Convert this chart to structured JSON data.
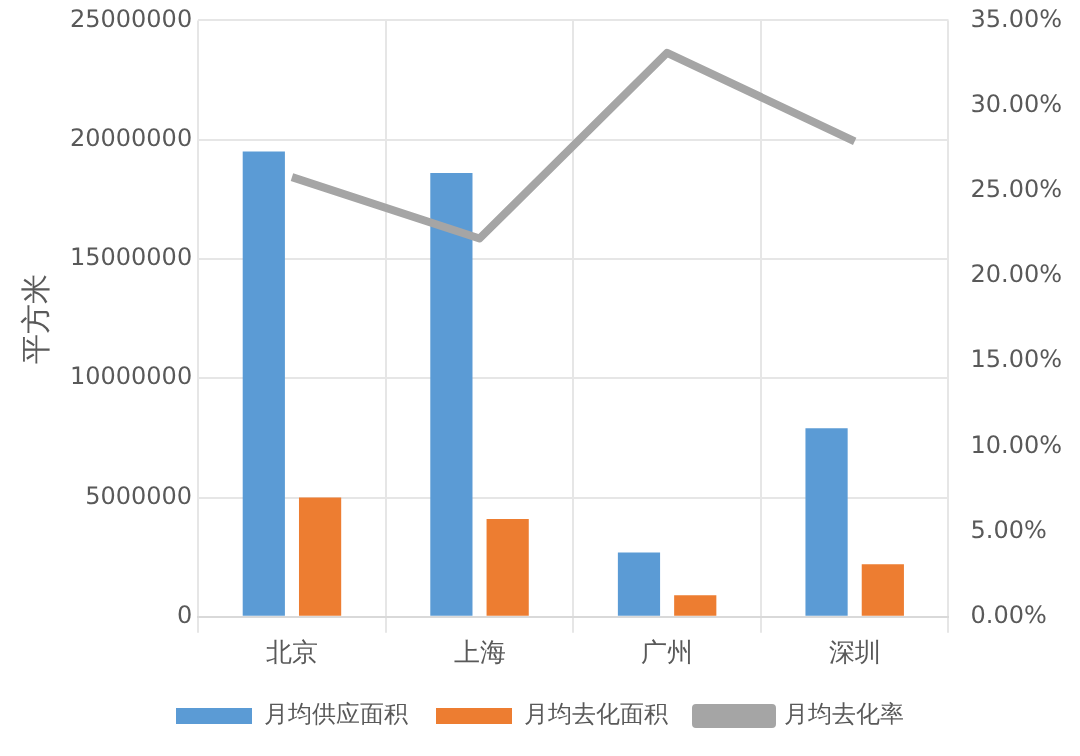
{
  "chart_data": {
    "type": "bar",
    "ylabel": "平方米",
    "categories": [
      "北京",
      "上海",
      "广州",
      "深圳"
    ],
    "series": [
      {
        "name": "月均供应面积",
        "color": "#5b9bd5",
        "values": [
          19500000,
          18600000,
          2700000,
          7900000
        ]
      },
      {
        "name": "月均去化面积",
        "color": "#ed7d31",
        "values": [
          5000000,
          4100000,
          900000,
          2200000
        ]
      },
      {
        "name": "月均去化率",
        "type": "line",
        "axis": "y2",
        "color": "#a5a5a5",
        "values": [
          25.8,
          22.2,
          33.1,
          27.9
        ]
      }
    ],
    "ylim": [
      0,
      25000000
    ],
    "yticks": [
      0,
      5000000,
      10000000,
      15000000,
      20000000,
      25000000
    ],
    "y2lim": [
      0,
      35
    ],
    "y2ticks": [
      {
        "value": 0,
        "label": "0.00%"
      },
      {
        "value": 5,
        "label": "5.00%"
      },
      {
        "value": 10,
        "label": "10.00%"
      },
      {
        "value": 15,
        "label": "15.00%"
      },
      {
        "value": 20,
        "label": "20.00%"
      },
      {
        "value": 25,
        "label": "25.00%"
      },
      {
        "value": 30,
        "label": "30.00%"
      },
      {
        "value": 35,
        "label": "35.00%"
      }
    ],
    "grid": true,
    "legend": "bottom",
    "marker": "none"
  }
}
